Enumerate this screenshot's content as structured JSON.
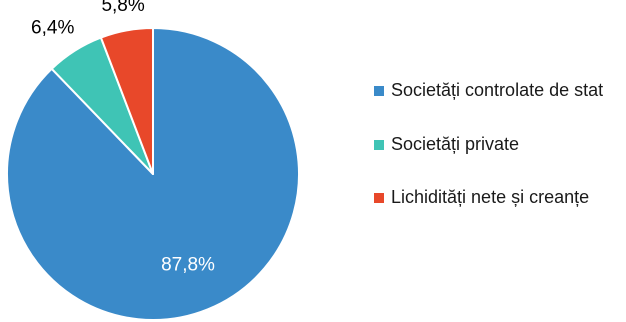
{
  "chart_data": {
    "type": "pie",
    "title": "",
    "legend_position": "right",
    "slices": [
      {
        "label": "Societăți controlate de stat",
        "value": 87.8,
        "value_label": "87,8%",
        "color": "#3a8ac9"
      },
      {
        "label": "Societăți private",
        "value": 6.4,
        "value_label": "6,4%",
        "color": "#3fc4b5"
      },
      {
        "label": "Lichidități nete și creanțe",
        "value": 5.8,
        "value_label": "5,8%",
        "color": "#e8482a"
      }
    ]
  }
}
